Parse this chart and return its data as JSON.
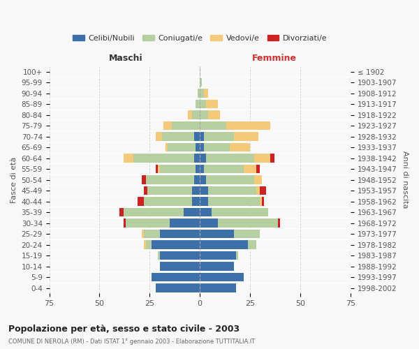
{
  "age_groups": [
    "0-4",
    "5-9",
    "10-14",
    "15-19",
    "20-24",
    "25-29",
    "30-34",
    "35-39",
    "40-44",
    "45-49",
    "50-54",
    "55-59",
    "60-64",
    "65-69",
    "70-74",
    "75-79",
    "80-84",
    "85-89",
    "90-94",
    "95-99",
    "100+"
  ],
  "birth_years": [
    "1998-2002",
    "1993-1997",
    "1988-1992",
    "1983-1987",
    "1978-1982",
    "1973-1977",
    "1968-1972",
    "1963-1967",
    "1958-1962",
    "1953-1957",
    "1948-1952",
    "1943-1947",
    "1938-1942",
    "1933-1937",
    "1928-1932",
    "1923-1927",
    "1918-1922",
    "1913-1917",
    "1908-1912",
    "1903-1907",
    "≤ 1902"
  ],
  "male": {
    "celibi": [
      22,
      24,
      20,
      20,
      24,
      20,
      15,
      8,
      4,
      4,
      3,
      2,
      3,
      2,
      3,
      0,
      0,
      0,
      0,
      0,
      0
    ],
    "coniugati": [
      0,
      0,
      0,
      1,
      3,
      8,
      22,
      30,
      24,
      22,
      24,
      18,
      30,
      14,
      16,
      14,
      4,
      2,
      1,
      0,
      0
    ],
    "vedovi": [
      0,
      0,
      0,
      0,
      1,
      1,
      0,
      0,
      0,
      0,
      0,
      1,
      5,
      1,
      3,
      4,
      2,
      0,
      0,
      0,
      0
    ],
    "divorziati": [
      0,
      0,
      0,
      0,
      0,
      0,
      1,
      2,
      3,
      2,
      2,
      1,
      0,
      0,
      0,
      0,
      0,
      0,
      0,
      0,
      0
    ]
  },
  "female": {
    "nubili": [
      18,
      22,
      17,
      18,
      24,
      17,
      9,
      6,
      4,
      4,
      3,
      2,
      3,
      2,
      2,
      0,
      0,
      0,
      0,
      0,
      0
    ],
    "coniugate": [
      0,
      0,
      0,
      1,
      4,
      13,
      30,
      28,
      26,
      24,
      24,
      20,
      24,
      13,
      15,
      13,
      4,
      3,
      2,
      1,
      0
    ],
    "vedove": [
      0,
      0,
      0,
      0,
      0,
      0,
      0,
      0,
      1,
      2,
      4,
      6,
      8,
      10,
      12,
      22,
      6,
      6,
      2,
      0,
      0
    ],
    "divorziate": [
      0,
      0,
      0,
      0,
      0,
      0,
      1,
      0,
      1,
      3,
      0,
      2,
      2,
      0,
      0,
      0,
      0,
      0,
      0,
      0,
      0
    ]
  },
  "colors": {
    "celibi_nubili": "#3d6fa8",
    "coniugati": "#b5cfa0",
    "vedovi": "#f5c97a",
    "divorziati": "#cc2222"
  },
  "xlim": 75,
  "title": "Popolazione per età, sesso e stato civile - 2003",
  "subtitle": "COMUNE DI NEROLA (RM) - Dati ISTAT 1° gennaio 2003 - Elaborazione TUTTITALIA.IT",
  "ylabel_left": "Fasce di età",
  "ylabel_right": "Anni di nascita",
  "xlabel_left": "Maschi",
  "xlabel_right": "Femmine",
  "legend_labels": [
    "Celibi/Nubili",
    "Coniugati/e",
    "Vedovi/e",
    "Divorziati/e"
  ],
  "bg_color": "#f8f8f8",
  "grid_color": "#cccccc"
}
